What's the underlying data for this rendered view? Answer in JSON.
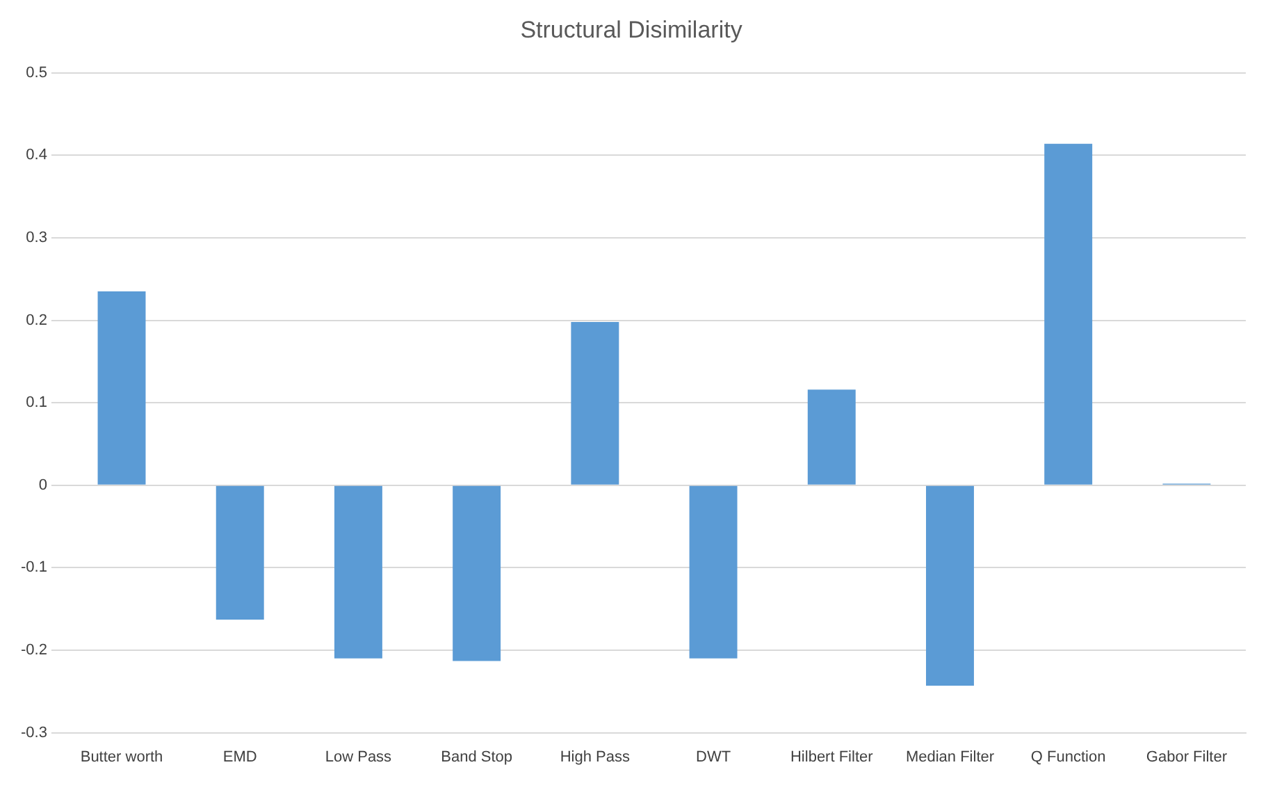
{
  "chart_data": {
    "type": "bar",
    "title": "Structural Disimilarity",
    "categories": [
      "Butter worth",
      "EMD",
      "Low Pass",
      "Band Stop",
      "High Pass",
      "DWT",
      "Hilbert Filter",
      "Median Filter",
      "Q Function",
      "Gabor Filter"
    ],
    "values": [
      0.235,
      -0.163,
      -0.21,
      -0.213,
      0.198,
      -0.21,
      0.116,
      -0.243,
      0.414,
      0.002
    ],
    "color": "#5b9bd5",
    "ylim": [
      -0.3,
      0.5
    ],
    "yticks": [
      -0.3,
      -0.2,
      -0.1,
      0,
      0.1,
      0.2,
      0.3,
      0.4,
      0.5
    ],
    "grid": "y"
  }
}
